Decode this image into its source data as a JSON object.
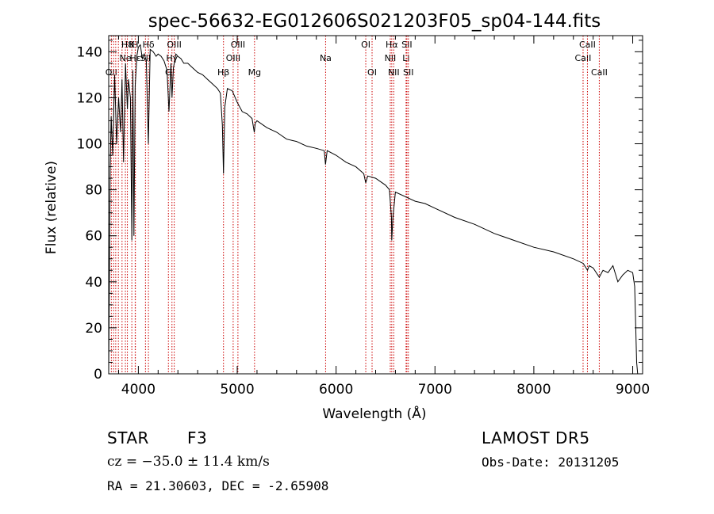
{
  "chart_data": {
    "type": "line",
    "title": "spec-56632-EG012606S021203F05_sp04-144.fits",
    "xlabel": "Wavelength (Å)",
    "ylabel": "Flux (relative)",
    "xlim": [
      3700,
      9100
    ],
    "ylim": [
      0,
      147
    ],
    "x_ticks": [
      4000,
      5000,
      6000,
      7000,
      8000,
      9000
    ],
    "y_ticks": [
      0,
      20,
      40,
      60,
      80,
      100,
      120,
      140
    ],
    "grid": false,
    "line_color": "#000000",
    "marker_color": "#cc0000",
    "series": [
      {
        "x": [
          3700,
          3715,
          3725,
          3740,
          3760,
          3780,
          3800,
          3820,
          3835,
          3850,
          3870,
          3889,
          3900,
          3920,
          3934,
          3945,
          3955,
          3968,
          3985,
          4000,
          4020,
          4040,
          4060,
          4080,
          4101,
          4120,
          4150,
          4180,
          4200,
          4230,
          4260,
          4290,
          4310,
          4330,
          4340,
          4355,
          4380,
          4400,
          4430,
          4460,
          4500,
          4550,
          4600,
          4650,
          4700,
          4750,
          4800,
          4830,
          4850,
          4861,
          4875,
          4900,
          4950,
          5000,
          5050,
          5100,
          5150,
          5172,
          5183,
          5200,
          5300,
          5400,
          5500,
          5600,
          5700,
          5800,
          5880,
          5893,
          5910,
          6000,
          6100,
          6200,
          6280,
          6300,
          6320,
          6400,
          6500,
          6540,
          6560,
          6563,
          6575,
          6600,
          6700,
          6800,
          6900,
          7000,
          7200,
          7400,
          7600,
          7800,
          8000,
          8200,
          8400,
          8500,
          8542,
          8560,
          8600,
          8662,
          8700,
          8750,
          8800,
          8850,
          8900,
          8950,
          9000,
          9020,
          9040,
          9050
        ],
        "y": [
          0,
          90,
          112,
          95,
          130,
          100,
          120,
          105,
          128,
          92,
          135,
          115,
          128,
          120,
          58,
          132,
          60,
          125,
          138,
          142,
          143,
          137,
          139,
          136,
          100,
          141,
          140,
          138,
          139,
          138,
          136,
          132,
          114,
          135,
          120,
          133,
          139,
          138,
          137,
          135,
          135,
          133,
          131,
          130,
          128,
          126,
          124,
          122,
          108,
          87,
          116,
          124,
          123,
          118,
          114,
          113,
          111,
          105,
          109,
          110,
          107,
          105,
          102,
          101,
          99,
          98,
          97,
          91,
          97,
          95,
          92,
          90,
          87,
          83,
          86,
          85,
          82,
          80,
          68,
          58,
          68,
          79,
          77,
          75,
          74,
          72,
          68,
          65,
          61,
          58,
          55,
          53,
          50,
          48,
          45,
          47,
          46,
          42,
          45,
          44,
          47,
          40,
          43,
          45,
          44,
          38,
          5,
          0
        ]
      }
    ],
    "line_markers": [
      {
        "x": 3727,
        "label": "OII",
        "row": 2
      },
      {
        "x": 3750,
        "label": "",
        "row": 0
      },
      {
        "x": 3771,
        "label": "",
        "row": 0
      },
      {
        "x": 3798,
        "label": "",
        "row": 0
      },
      {
        "x": 3835,
        "label": "",
        "row": 0
      },
      {
        "x": 3869,
        "label": "Ne",
        "row": 1
      },
      {
        "x": 3889,
        "label": "H8",
        "row": 0
      },
      {
        "x": 3934,
        "label": "K",
        "row": 0
      },
      {
        "x": 3968,
        "label": "H",
        "row": 0
      },
      {
        "x": 3970,
        "label": "Hε",
        "row": 1
      },
      {
        "x": 4072,
        "label": "SII",
        "row": 1
      },
      {
        "x": 4102,
        "label": "Hδ",
        "row": 0
      },
      {
        "x": 4304,
        "label": "G",
        "row": 2
      },
      {
        "x": 4340,
        "label": "Hγ",
        "row": 1
      },
      {
        "x": 4363,
        "label": "OIII",
        "row": 0
      },
      {
        "x": 4861,
        "label": "Hβ",
        "row": 2
      },
      {
        "x": 4959,
        "label": "OIII",
        "row": 1
      },
      {
        "x": 5007,
        "label": "OIII",
        "row": 0
      },
      {
        "x": 5175,
        "label": "Mg",
        "row": 2
      },
      {
        "x": 5894,
        "label": "Na",
        "row": 1
      },
      {
        "x": 6300,
        "label": "OI",
        "row": 0
      },
      {
        "x": 6364,
        "label": "OI",
        "row": 2
      },
      {
        "x": 6548,
        "label": "NII",
        "row": 1
      },
      {
        "x": 6563,
        "label": "Hα",
        "row": 0
      },
      {
        "x": 6583,
        "label": "NII",
        "row": 2
      },
      {
        "x": 6708,
        "label": "Li",
        "row": 1
      },
      {
        "x": 6716,
        "label": "SII",
        "row": 0
      },
      {
        "x": 6731,
        "label": "SII",
        "row": 2
      },
      {
        "x": 8498,
        "label": "CaII",
        "row": 1
      },
      {
        "x": 8542,
        "label": "CaII",
        "row": 0
      },
      {
        "x": 8662,
        "label": "CaII",
        "row": 2
      }
    ]
  },
  "info": {
    "object_class": "STAR",
    "subclass": "F3",
    "survey": "LAMOST DR5",
    "redshift_line": "cz = −35.0 ± 11.4 km/s",
    "obs_date": "Obs-Date: 20131205",
    "coords": "RA =  21.30603, DEC =  -2.65908"
  }
}
